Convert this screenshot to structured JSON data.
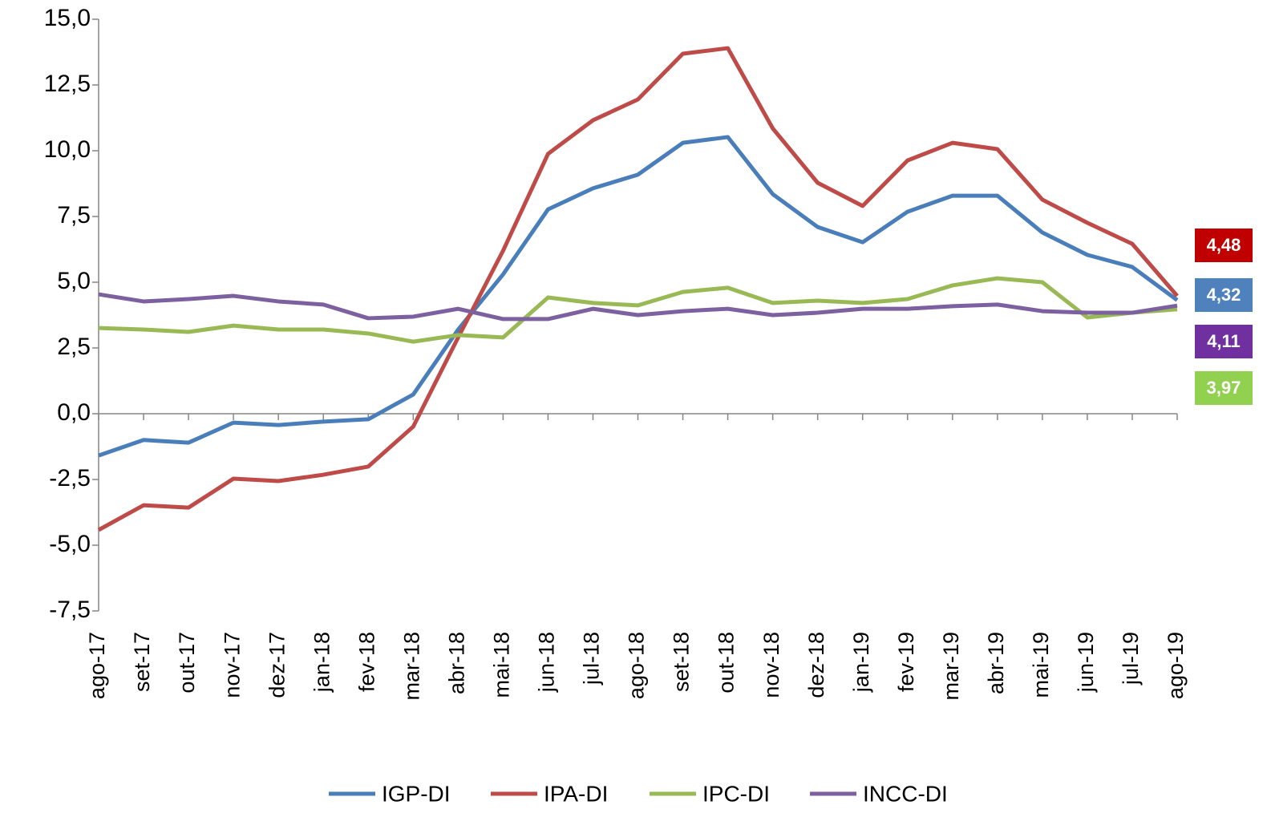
{
  "chart_data": {
    "type": "line",
    "categories": [
      "ago-17",
      "set-17",
      "out-17",
      "nov-17",
      "dez-17",
      "jan-18",
      "fev-18",
      "mar-18",
      "abr-18",
      "mai-18",
      "jun-18",
      "jul-18",
      "ago-18",
      "set-18",
      "out-18",
      "nov-18",
      "dez-18",
      "jan-19",
      "fev-19",
      "mar-19",
      "abr-19",
      "mai-19",
      "jun-19",
      "jul-19",
      "ago-19"
    ],
    "ylim": [
      -7.5,
      15
    ],
    "yticks": [
      {
        "value": -7.5,
        "label": "-7,5"
      },
      {
        "value": -5,
        "label": "-5,0"
      },
      {
        "value": -2.5,
        "label": "-2,5"
      },
      {
        "value": 0,
        "label": "0,0"
      },
      {
        "value": 2.5,
        "label": "2,5"
      },
      {
        "value": 5,
        "label": "5,0"
      },
      {
        "value": 7.5,
        "label": "7,5"
      },
      {
        "value": 10,
        "label": "10,0"
      },
      {
        "value": 12.5,
        "label": "12,5"
      },
      {
        "value": 15,
        "label": "15,0"
      }
    ],
    "legend": "bottom",
    "series": [
      {
        "name": "IGP-DI",
        "color": "#4a7ebb",
        "label_color": "#4f81bd",
        "values": [
          -1.59,
          -1.0,
          -1.1,
          -0.34,
          -0.43,
          -0.3,
          -0.21,
          0.73,
          3.2,
          5.3,
          7.77,
          8.57,
          9.09,
          10.3,
          10.52,
          8.35,
          7.1,
          6.52,
          7.68,
          8.29,
          8.29,
          6.89,
          6.04,
          5.58,
          4.32
        ],
        "value_labels": [
          null,
          null,
          null,
          null,
          null,
          null,
          null,
          null,
          null,
          null,
          null,
          null,
          null,
          null,
          null,
          null,
          null,
          null,
          null,
          null,
          null,
          null,
          null,
          null,
          "4,32"
        ]
      },
      {
        "name": "IPA-DI",
        "color": "#be4b48",
        "label_color": "#c00000",
        "values": [
          -4.42,
          -3.48,
          -3.57,
          -2.47,
          -2.56,
          -2.32,
          -2.01,
          -0.49,
          2.9,
          6.2,
          9.88,
          11.16,
          11.95,
          13.69,
          13.9,
          10.85,
          8.78,
          7.9,
          9.63,
          10.3,
          10.06,
          8.14,
          7.26,
          6.46,
          4.48
        ],
        "value_labels": [
          null,
          null,
          null,
          null,
          null,
          null,
          null,
          null,
          null,
          null,
          null,
          null,
          null,
          null,
          null,
          null,
          null,
          null,
          null,
          null,
          null,
          null,
          null,
          null,
          "4,48"
        ]
      },
      {
        "name": "IPC-DI",
        "color": "#98b954",
        "label_color": "#92d050",
        "values": [
          3.26,
          3.2,
          3.11,
          3.35,
          3.2,
          3.2,
          3.05,
          2.74,
          2.99,
          2.9,
          4.42,
          4.21,
          4.12,
          4.63,
          4.79,
          4.21,
          4.3,
          4.21,
          4.36,
          4.88,
          5.15,
          5.0,
          3.66,
          3.84,
          3.97
        ],
        "value_labels": [
          null,
          null,
          null,
          null,
          null,
          null,
          null,
          null,
          null,
          null,
          null,
          null,
          null,
          null,
          null,
          null,
          null,
          null,
          null,
          null,
          null,
          null,
          null,
          null,
          "3,97"
        ]
      },
      {
        "name": "INCC-DI",
        "color": "#7d60a0",
        "label_color": "#7030a0",
        "values": [
          4.54,
          4.27,
          4.36,
          4.48,
          4.27,
          4.15,
          3.63,
          3.69,
          3.99,
          3.6,
          3.6,
          3.99,
          3.75,
          3.9,
          3.99,
          3.75,
          3.84,
          3.99,
          3.99,
          4.09,
          4.15,
          3.9,
          3.84,
          3.84,
          4.11
        ],
        "value_labels": [
          null,
          null,
          null,
          null,
          null,
          null,
          null,
          null,
          null,
          null,
          null,
          null,
          null,
          null,
          null,
          null,
          null,
          null,
          null,
          null,
          null,
          null,
          null,
          null,
          "4,11"
        ]
      }
    ]
  }
}
